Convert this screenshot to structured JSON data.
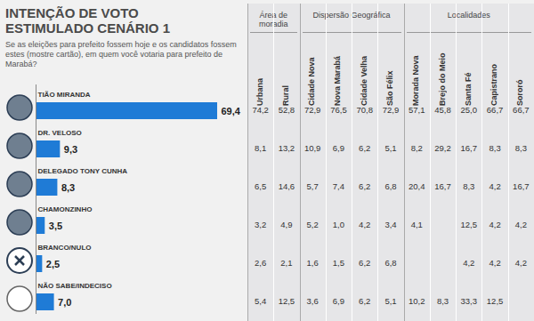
{
  "chart_data": {
    "type": "bar",
    "orientation": "horizontal",
    "title": "INTENÇÃO DE VOTO ESTIMULADO CENÁRIO 1",
    "subtitle": "Se as eleições para prefeito fossem hoje e os candidatos fossem estes (mostre cartão), em quem você votaria para prefeito de Marabá?",
    "categories": [
      "TIÃO MIRANDA",
      "DR. VELOSO",
      "DELEGADO TONY CUNHA",
      "CHAMONZINHO",
      "BRANCO/NULO",
      "NÃO SABE/INDECISO"
    ],
    "values": [
      69.4,
      9.3,
      8.3,
      3.5,
      2.5,
      7.0
    ],
    "value_labels": [
      "69,4",
      "9,3",
      "8,3",
      "3,5",
      "2,5",
      "7,0"
    ],
    "color": "#1f7bd6",
    "xlim": [
      0,
      69.4
    ],
    "data_labels": true,
    "tick_labels": false,
    "grid": false
  },
  "table": {
    "groups": [
      {
        "label": "Área de moradia",
        "columns": [
          "Urbana",
          "Rural"
        ]
      },
      {
        "label": "Dispersão Geográfica",
        "columns": [
          "Cidade Nova",
          "Nova Marabá",
          "Cidade Velha",
          "São Félix"
        ]
      },
      {
        "label": "Localidades",
        "columns": [
          "Morada Nova",
          "Brejo do Meio",
          "Santa Fé",
          "Capistrano",
          "Sororó"
        ]
      }
    ],
    "rows": [
      [
        "74,2",
        "52,8",
        "72,9",
        "76,5",
        "70,8",
        "72,9",
        "57,1",
        "45,8",
        "25,0",
        "66,7",
        "66,7"
      ],
      [
        "8,1",
        "13,2",
        "10,9",
        "6,9",
        "6,2",
        "5,1",
        "8,2",
        "29,2",
        "16,7",
        "8,3",
        "8,3"
      ],
      [
        "6,5",
        "14,6",
        "5,7",
        "7,4",
        "6,2",
        "6,8",
        "20,4",
        "16,7",
        "8,3",
        "4,2",
        "16,7"
      ],
      [
        "3,2",
        "4,9",
        "5,2",
        "1,0",
        "4,2",
        "3,4",
        "4,1",
        null,
        "12,5",
        "4,2",
        "4,2"
      ],
      [
        "2,6",
        "2,1",
        "1,6",
        "1,5",
        "6,2",
        "6,8",
        null,
        null,
        "4,2",
        "4,2",
        "4,2"
      ],
      [
        "5,4",
        "12,5",
        "3,6",
        "6,9",
        "6,2",
        "5,1",
        "10,2",
        "8,3",
        "33,3",
        "12,5",
        null
      ]
    ]
  }
}
